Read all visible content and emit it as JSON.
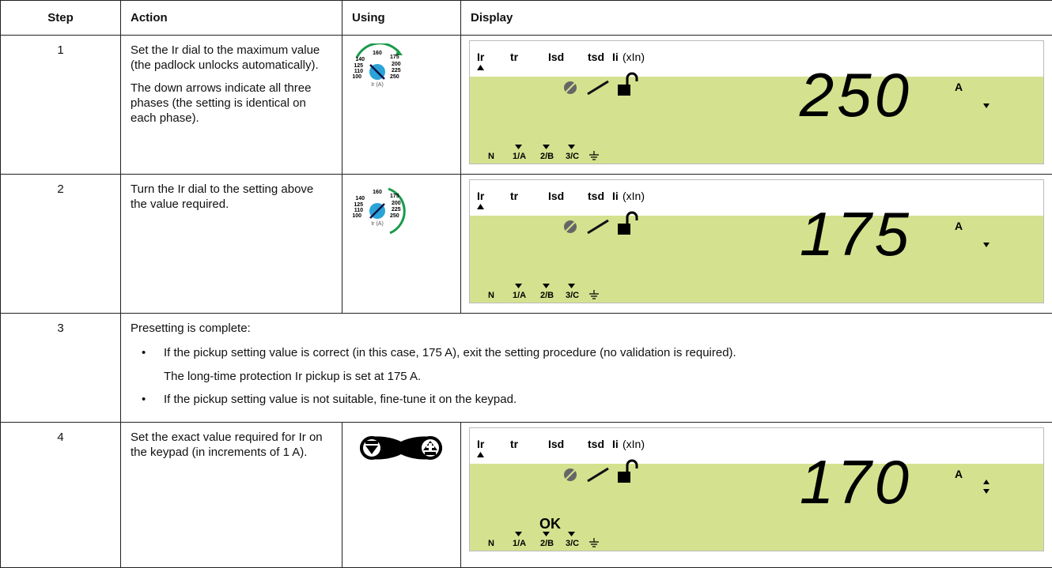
{
  "table": {
    "headers": [
      "Step",
      "Action",
      "Using",
      "Display"
    ],
    "rows": [
      {
        "step": "1",
        "action": [
          "Set the Ir dial to the maximum value (the padlock unlocks automatically).",
          "The down arrows indicate all three phases (the setting is identical on each phase)."
        ],
        "dial": {
          "labels": [
            "160",
            "175",
            "200",
            "225",
            "250",
            "100",
            "110",
            "125",
            "140"
          ],
          "unit": "Ir (A)"
        },
        "display": {
          "top_labels": [
            "Ir",
            "tr",
            "Isd",
            "tsd",
            "Ii"
          ],
          "ii_unit": "(xIn)",
          "value": "250",
          "unit": "A",
          "phases": [
            "N",
            "1/A",
            "2/B",
            "3/C"
          ]
        }
      },
      {
        "step": "2",
        "action": [
          "Turn the Ir dial to the setting above the value required."
        ],
        "dial": {
          "labels": [
            "160",
            "175",
            "200",
            "225",
            "250",
            "100",
            "110",
            "125",
            "140"
          ],
          "unit": "Ir (A)"
        },
        "display": {
          "top_labels": [
            "Ir",
            "tr",
            "Isd",
            "tsd",
            "Ii"
          ],
          "ii_unit": "(xIn)",
          "value": "175",
          "unit": "A",
          "phases": [
            "N",
            "1/A",
            "2/B",
            "3/C"
          ]
        }
      },
      {
        "step": "3",
        "intro": "Presetting is complete:",
        "bullets": [
          {
            "text": "If the pickup setting value is correct (in this case, 175 A), exit the setting procedure (no validation is required).",
            "note": "The long-time protection Ir pickup is set at 175 A."
          },
          {
            "text": "If the pickup setting value is not suitable, fine-tune it on the keypad."
          }
        ]
      },
      {
        "step": "4",
        "action": [
          "Set the exact value required for Ir on the keypad (in increments of 1 A)."
        ],
        "display": {
          "top_labels": [
            "Ir",
            "tr",
            "Isd",
            "tsd",
            "Ii"
          ],
          "ii_unit": "(xIn)",
          "value": "170",
          "unit": "A",
          "ok": "OK",
          "phases": [
            "N",
            "1/A",
            "2/B",
            "3/C"
          ]
        }
      }
    ]
  }
}
